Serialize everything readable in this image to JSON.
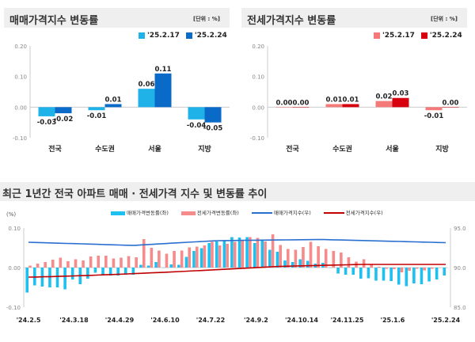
{
  "chart_data": [
    {
      "type": "bar",
      "title": "매매가격지수 변동률",
      "unit": "[단위 : %]",
      "categories": [
        "전국",
        "수도권",
        "서울",
        "지방"
      ],
      "series": [
        {
          "name": "'25.2.17",
          "values": [
            -0.03,
            -0.01,
            0.06,
            -0.04
          ],
          "color": "#1fb2e8"
        },
        {
          "name": "'25.2.24",
          "values": [
            -0.02,
            0.01,
            0.11,
            -0.05
          ],
          "color": "#0a6ac8"
        }
      ],
      "ylim": [
        -0.1,
        0.2
      ],
      "yticks": [
        "0.20",
        "0.10",
        "0.00",
        "-0.10"
      ]
    },
    {
      "type": "bar",
      "title": "전세가격지수 변동률",
      "unit": "[단위 : %]",
      "categories": [
        "전국",
        "수도권",
        "서울",
        "지방"
      ],
      "series": [
        {
          "name": "'25.2.17",
          "values": [
            0.0,
            0.01,
            0.02,
            -0.01
          ],
          "color": "#f47a7a"
        },
        {
          "name": "'25.2.24",
          "values": [
            0.0,
            0.01,
            0.03,
            0.0
          ],
          "color": "#d7000f"
        }
      ],
      "ylim": [
        -0.1,
        0.2
      ],
      "yticks": [
        "0.20",
        "0.10",
        "0.00",
        "-0.10"
      ]
    },
    {
      "type": "bar+line",
      "title": "최근 1년간 전국 아파트 매매 · 전세가격 지수 및 변동률 추이",
      "ylabel_left": "(%)",
      "ylim_left": [
        -0.1,
        0.1
      ],
      "ylim_right": [
        85.0,
        95.0
      ],
      "yticks_left": [
        "0.10",
        "0.00",
        "-0.10"
      ],
      "yticks_right": [
        "95.0",
        "90.0",
        "85.0"
      ],
      "xticks": [
        "'24.2.5",
        "'24.3.18",
        "'24.4.29",
        "'24.6.10",
        "'24.7.22",
        "'24.9.2",
        "'24.10.14",
        "'24.11.25",
        "'25.1.6",
        "'25.2.24"
      ],
      "series": [
        {
          "name": "매매가격변동률(좌)",
          "type": "bar",
          "color": "#1ec0f0",
          "values": [
            -0.063,
            -0.045,
            -0.048,
            -0.05,
            -0.05,
            -0.055,
            -0.03,
            -0.042,
            -0.028,
            -0.013,
            -0.02,
            -0.02,
            -0.02,
            -0.018,
            -0.018,
            0.007,
            0.005,
            0.014,
            0.0,
            0.008,
            0.007,
            0.027,
            0.042,
            0.049,
            0.062,
            0.066,
            0.067,
            0.077,
            0.076,
            0.077,
            0.062,
            0.07,
            0.045,
            0.04,
            0.018,
            0.014,
            0.021,
            0.017,
            0.01,
            0.012,
            0.0,
            -0.015,
            -0.018,
            -0.018,
            -0.028,
            -0.027,
            -0.033,
            -0.033,
            -0.034,
            -0.043,
            -0.047,
            -0.04,
            -0.042,
            -0.035,
            -0.03,
            -0.02
          ]
        },
        {
          "name": "전세가격변동률(좌)",
          "type": "bar",
          "color": "#f78a8a",
          "values": [
            0.005,
            0.01,
            0.014,
            0.02,
            0.025,
            0.016,
            0.021,
            0.018,
            0.028,
            0.03,
            0.03,
            0.023,
            0.025,
            0.029,
            0.026,
            0.072,
            0.05,
            0.043,
            0.035,
            0.042,
            0.043,
            0.051,
            0.053,
            0.056,
            0.065,
            0.056,
            0.06,
            0.065,
            0.07,
            0.077,
            0.075,
            0.066,
            0.084,
            0.057,
            0.047,
            0.045,
            0.052,
            0.065,
            0.054,
            0.047,
            0.042,
            0.038,
            0.026,
            0.015,
            0.021,
            0.009,
            0.002,
            -0.003,
            -0.004,
            -0.012,
            -0.008,
            -0.003,
            -0.007,
            -0.003,
            0.0,
            0.0
          ]
        },
        {
          "name": "매매가격지수(우)",
          "type": "line",
          "color": "#2a6fd0"
        },
        {
          "name": "전세가격지수(우)",
          "type": "line",
          "color": "#c00000"
        }
      ]
    }
  ]
}
